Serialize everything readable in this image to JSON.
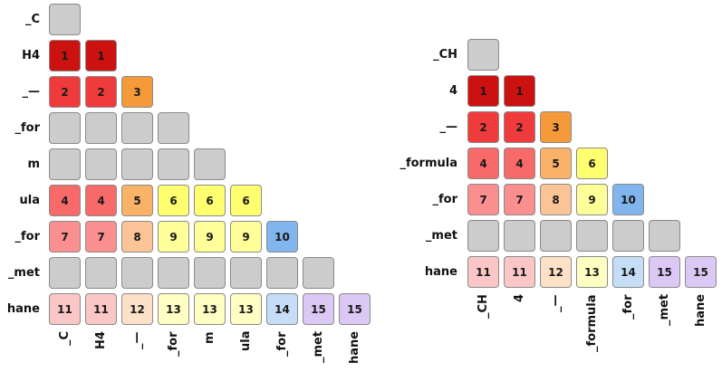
{
  "palette": {
    "empty": "#cccccc",
    "1": "#cc1111",
    "2": "#ef3b3b",
    "3": "#f59a3a",
    "4": "#f76a6a",
    "5": "#f9b268",
    "6": "#ffff70",
    "7": "#f98f8f",
    "8": "#fbc496",
    "9": "#ffff99",
    "10": "#80b5ee",
    "11": "#fac6c6",
    "12": "#fde1c6",
    "13": "#ffffc4",
    "14": "#c5ddf7",
    "15": "#dcc8f5"
  },
  "matrices": [
    {
      "row_labels": [
        "_C",
        "H4",
        "_—",
        "_for",
        "m",
        "ula",
        "_for",
        "_met",
        "hane"
      ],
      "col_labels": [
        "_C",
        "H4",
        "_—",
        "_for",
        "m",
        "ula",
        "_for",
        "_met",
        "hane"
      ],
      "rows": [
        [
          0
        ],
        [
          1,
          1
        ],
        [
          2,
          2,
          3
        ],
        [
          0,
          0,
          0,
          0
        ],
        [
          0,
          0,
          0,
          0,
          0
        ],
        [
          4,
          4,
          5,
          6,
          6,
          6
        ],
        [
          7,
          7,
          8,
          9,
          9,
          9,
          10
        ],
        [
          0,
          0,
          0,
          0,
          0,
          0,
          0,
          0
        ],
        [
          11,
          11,
          12,
          13,
          13,
          13,
          14,
          15,
          15
        ]
      ]
    },
    {
      "row_labels": [
        "_CH",
        "4",
        "_—",
        "_formula",
        "_for",
        "_met",
        "hane"
      ],
      "col_labels": [
        "_CH",
        "4",
        "_—",
        "_formula",
        "_for",
        "_met",
        "hane"
      ],
      "rows": [
        [
          0
        ],
        [
          1,
          1
        ],
        [
          2,
          2,
          3
        ],
        [
          4,
          4,
          5,
          6
        ],
        [
          7,
          7,
          8,
          9,
          10
        ],
        [
          0,
          0,
          0,
          0,
          0,
          0
        ],
        [
          11,
          11,
          12,
          13,
          14,
          15,
          15
        ]
      ]
    }
  ]
}
